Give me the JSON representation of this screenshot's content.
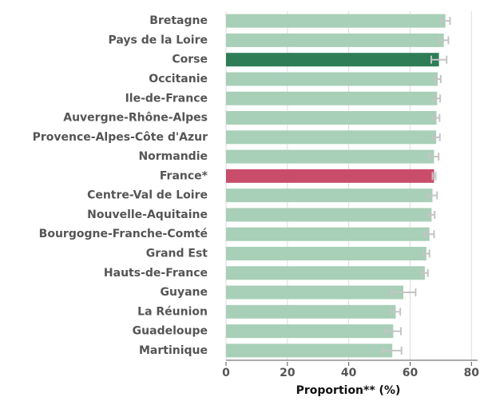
{
  "chart_data": {
    "type": "barh",
    "xlabel": "Proportion** (%)",
    "categories": [
      "Bretagne",
      "Pays de la Loire",
      "Corse",
      "Occitanie",
      "Ile-de-France",
      "Auvergne-Rhône-Alpes",
      "Provence-Alpes-Côte d'Azur",
      "Normandie",
      "France*",
      "Centre-Val de Loire",
      "Nouvelle-Aquitaine",
      "Bourgogne-Franche-Comté",
      "Grand Est",
      "Hauts-de-France",
      "Guyane",
      "La Réunion",
      "Guadeloupe",
      "Martinique"
    ],
    "values": [
      71.5,
      71,
      69.4,
      69,
      68.8,
      68.6,
      68.5,
      67.8,
      67.8,
      67.3,
      67,
      66.3,
      65.3,
      64.8,
      57.8,
      55.3,
      54.5,
      54.2
    ],
    "errors": [
      1.5,
      1.5,
      2.5,
      1,
      1,
      1,
      1.2,
      1.5,
      0.5,
      1.5,
      1,
      1.5,
      1,
      1,
      4,
      1.5,
      2.5,
      3
    ],
    "colors": [
      "#a8cfb7",
      "#a8cfb7",
      "#2e7d57",
      "#a8cfb7",
      "#a8cfb7",
      "#a8cfb7",
      "#a8cfb7",
      "#a8cfb7",
      "#c94d6b",
      "#a8cfb7",
      "#a8cfb7",
      "#a8cfb7",
      "#a8cfb7",
      "#a8cfb7",
      "#a8cfb7",
      "#a8cfb7",
      "#a8cfb7",
      "#a8cfb7"
    ],
    "error_color": "#c4c4c4",
    "xlim": [
      0,
      82
    ],
    "xticks": [
      0,
      20,
      40,
      60,
      80
    ],
    "grid": true
  }
}
